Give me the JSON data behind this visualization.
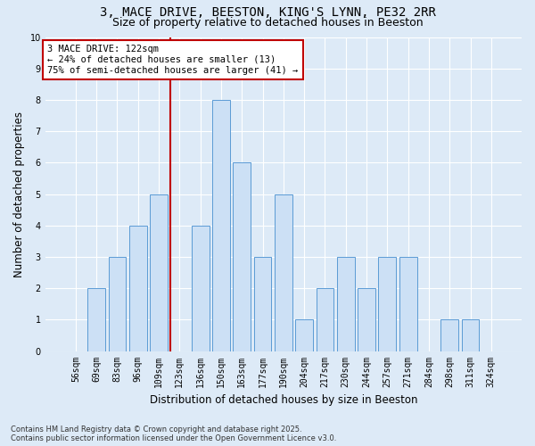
{
  "title_line1": "3, MACE DRIVE, BEESTON, KING'S LYNN, PE32 2RR",
  "title_line2": "Size of property relative to detached houses in Beeston",
  "xlabel": "Distribution of detached houses by size in Beeston",
  "ylabel": "Number of detached properties",
  "categories": [
    "56sqm",
    "69sqm",
    "83sqm",
    "96sqm",
    "109sqm",
    "123sqm",
    "136sqm",
    "150sqm",
    "163sqm",
    "177sqm",
    "190sqm",
    "204sqm",
    "217sqm",
    "230sqm",
    "244sqm",
    "257sqm",
    "271sqm",
    "284sqm",
    "298sqm",
    "311sqm",
    "324sqm"
  ],
  "values": [
    0,
    2,
    3,
    4,
    5,
    0,
    4,
    8,
    6,
    3,
    5,
    1,
    2,
    3,
    2,
    3,
    3,
    0,
    1,
    1,
    0
  ],
  "highlight_index": 5,
  "bar_color": "#cce0f5",
  "bar_edge_color": "#5b9bd5",
  "highlight_line_color": "#c00000",
  "annotation_text": "3 MACE DRIVE: 122sqm\n← 24% of detached houses are smaller (13)\n75% of semi-detached houses are larger (41) →",
  "annotation_box_color": "#ffffff",
  "annotation_box_edge": "#c00000",
  "ylim": [
    0,
    10
  ],
  "yticks": [
    0,
    1,
    2,
    3,
    4,
    5,
    6,
    7,
    8,
    9,
    10
  ],
  "footer": "Contains HM Land Registry data © Crown copyright and database right 2025.\nContains public sector information licensed under the Open Government Licence v3.0.",
  "bg_color": "#ddeaf7",
  "grid_color": "#ffffff",
  "title_fontsize": 10,
  "subtitle_fontsize": 9,
  "axis_label_fontsize": 8.5,
  "tick_fontsize": 7,
  "annotation_fontsize": 7.5,
  "footer_fontsize": 6
}
